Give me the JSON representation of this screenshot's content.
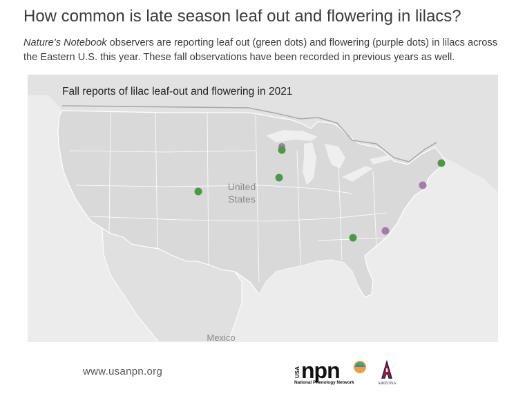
{
  "header": {
    "title": "How common is late season leaf out and flowering in lilacs?",
    "description_italic": "Nature’s Notebook",
    "description_rest": " observers are reporting leaf out (green dots) and flowering (purple dots) in lilacs across the Eastern U.S. this year. These fall observations have been recorded in previous years as well."
  },
  "map": {
    "title": "Fall reports of lilac leaf-out and flowering in 2021",
    "labels": {
      "country_line1": "United",
      "country_line2": "States",
      "mexico": "Mexico"
    },
    "colors": {
      "leaf_out": "#4a9a45",
      "flowering": "#a57bab",
      "land": "#dedede",
      "water": "#efefef",
      "border": "#ffffff"
    },
    "observations": [
      {
        "type": "flowering",
        "location": "Wisconsin"
      },
      {
        "type": "leaf_out",
        "location": "Wisconsin"
      },
      {
        "type": "leaf_out",
        "location": "Iowa"
      },
      {
        "type": "leaf_out",
        "location": "Colorado"
      },
      {
        "type": "leaf_out",
        "location": "New Hampshire"
      },
      {
        "type": "flowering",
        "location": "New Jersey"
      },
      {
        "type": "flowering",
        "location": "North Carolina"
      },
      {
        "type": "leaf_out",
        "location": "Tennessee"
      }
    ]
  },
  "footer": {
    "url": "www.usanpn.org",
    "npn_vertical": "USA",
    "npn_wordmark": "npn",
    "npn_caption": "National Phenology Network",
    "az_caption": "ARIZONA"
  }
}
